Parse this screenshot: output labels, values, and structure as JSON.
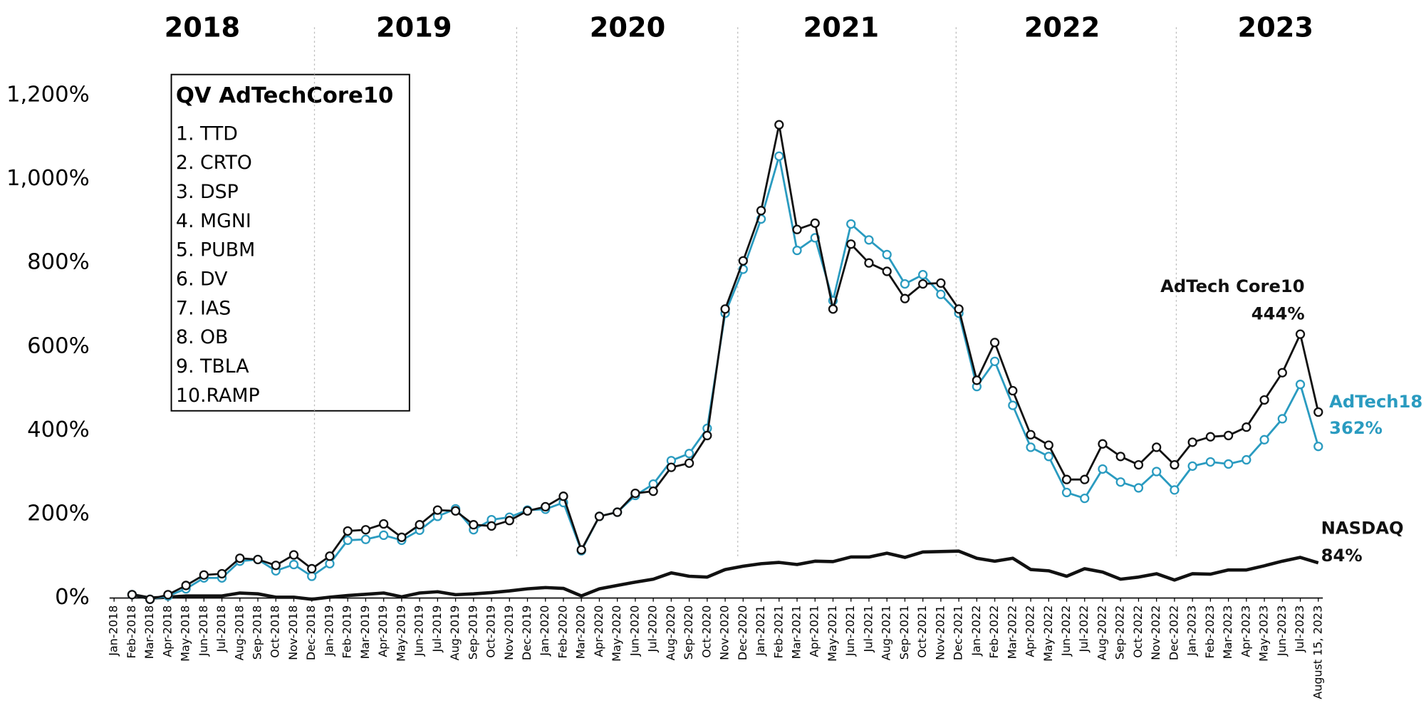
{
  "chart_data": {
    "type": "line",
    "years": [
      "2018",
      "2019",
      "2020",
      "2021",
      "2022",
      "2023"
    ],
    "index_box": {
      "title": "QV AdTechCore10",
      "items": [
        "1. TTD",
        "2. CRTO",
        "3. DSP",
        "4. MGNI",
        "5. PUBM",
        "6. DV",
        "7. IAS",
        "8. OB",
        "9. TBLA",
        "10.RAMP"
      ]
    },
    "categories": [
      "Jan-2018",
      "Feb-2018",
      "Mar-2018",
      "Apr-2018",
      "May-2018",
      "Jun-2018",
      "Jul-2018",
      "Aug-2018",
      "Sep-2018",
      "Oct-2018",
      "Nov-2018",
      "Dec-2018",
      "Jan-2019",
      "Feb-2019",
      "Mar-2019",
      "Apr-2019",
      "May-2019",
      "Jun-2019",
      "Jul-2019",
      "Aug-2019",
      "Sep-2019",
      "Oct-2019",
      "Nov-2019",
      "Dec-2019",
      "Jan-2020",
      "Feb-2020",
      "Mar-2020",
      "Apr-2020",
      "May-2020",
      "Jun-2020",
      "Jul-2020",
      "Aug-2020",
      "Sep-2020",
      "Oct-2020",
      "Nov-2020",
      "Dec-2020",
      "Jan-2021",
      "Feb-2021",
      "Mar-2021",
      "Apr-2021",
      "May-2021",
      "Jun-2021",
      "Jul-2021",
      "Aug-2021",
      "Sep-2021",
      "Oct-2021",
      "Nov-2021",
      "Dec-2021",
      "Jan-2022",
      "Feb-2022",
      "Mar-2022",
      "Apr-2022",
      "May-2022",
      "Jun-2022",
      "Jul-2022",
      "Aug-2022",
      "Sep-2022",
      "Oct-2022",
      "Nov-2022",
      "Dec-2022",
      "Jan-2023",
      "Feb-2023",
      "Mar-2023",
      "Apr-2023",
      "May-2023",
      "Jun-2023",
      "Jul-2023",
      "August 15, 2023"
    ],
    "series": [
      {
        "name": "AdTech Core10",
        "color": "#111111",
        "markers": true,
        "values": [
          null,
          8,
          -3,
          8,
          30,
          55,
          58,
          95,
          92,
          78,
          103,
          70,
          100,
          160,
          163,
          177,
          145,
          175,
          210,
          208,
          175,
          172,
          185,
          208,
          218,
          243,
          115,
          195,
          205,
          250,
          255,
          312,
          322,
          388,
          690,
          805,
          925,
          1130,
          880,
          895,
          690,
          845,
          800,
          780,
          715,
          750,
          752,
          690,
          520,
          610,
          495,
          390,
          365,
          283,
          283,
          368,
          338,
          318,
          360,
          318,
          372,
          385,
          388,
          408,
          473,
          538,
          630,
          444
        ],
        "value_labels": [
          null,
          null,
          null,
          null,
          null,
          null,
          null,
          null,
          null,
          null,
          null,
          null,
          null,
          null,
          null,
          null,
          null,
          null,
          null,
          null,
          null,
          null,
          null,
          null,
          null,
          null,
          null,
          null,
          null,
          null,
          null,
          null,
          null,
          null,
          null,
          null,
          null,
          null,
          null,
          null,
          null,
          null,
          null,
          null,
          null,
          null,
          null,
          null,
          null,
          null,
          null,
          null,
          null,
          null,
          null,
          null,
          null,
          null,
          null,
          null,
          null,
          null,
          null,
          null,
          null,
          null,
          null,
          "444%"
        ]
      },
      {
        "name": "AdTech18",
        "color": "#2a9bc0",
        "markers": true,
        "values": [
          null,
          8,
          -3,
          5,
          22,
          48,
          48,
          88,
          92,
          65,
          80,
          52,
          82,
          138,
          140,
          150,
          138,
          162,
          195,
          213,
          163,
          187,
          193,
          210,
          212,
          228,
          113,
          195,
          205,
          245,
          272,
          328,
          345,
          405,
          680,
          785,
          905,
          1055,
          830,
          860,
          710,
          893,
          855,
          820,
          750,
          772,
          725,
          680,
          505,
          565,
          460,
          360,
          338,
          252,
          238,
          308,
          277,
          263,
          302,
          258,
          315,
          325,
          320,
          330,
          378,
          428,
          510,
          362
        ],
        "value_labels": [
          null,
          null,
          null,
          null,
          null,
          null,
          null,
          null,
          null,
          null,
          null,
          null,
          null,
          null,
          null,
          null,
          null,
          null,
          null,
          null,
          null,
          null,
          null,
          null,
          null,
          null,
          null,
          null,
          null,
          null,
          null,
          null,
          null,
          null,
          null,
          null,
          null,
          null,
          null,
          null,
          null,
          null,
          null,
          null,
          null,
          null,
          null,
          null,
          null,
          null,
          null,
          null,
          null,
          null,
          null,
          null,
          null,
          null,
          null,
          null,
          null,
          null,
          null,
          null,
          null,
          null,
          null,
          "362%"
        ]
      },
      {
        "name": "NASDAQ",
        "color": "#111111",
        "markers": false,
        "values": [
          null,
          8,
          0,
          2,
          5,
          5,
          5,
          12,
          10,
          2,
          2,
          -3,
          2,
          6,
          9,
          12,
          3,
          12,
          15,
          8,
          10,
          13,
          17,
          22,
          25,
          23,
          5,
          22,
          30,
          38,
          45,
          60,
          52,
          50,
          68,
          76,
          82,
          85,
          80,
          88,
          87,
          98,
          98,
          107,
          97,
          110,
          111,
          112,
          95,
          88,
          95,
          68,
          65,
          52,
          70,
          62,
          45,
          50,
          58,
          43,
          58,
          57,
          67,
          67,
          77,
          88,
          97,
          84
        ],
        "value_labels": [
          null,
          null,
          null,
          null,
          null,
          null,
          null,
          null,
          null,
          null,
          null,
          null,
          null,
          null,
          null,
          null,
          null,
          null,
          null,
          null,
          null,
          null,
          null,
          null,
          null,
          null,
          null,
          null,
          null,
          null,
          null,
          null,
          null,
          null,
          null,
          null,
          null,
          null,
          null,
          null,
          null,
          null,
          null,
          null,
          null,
          null,
          null,
          null,
          null,
          null,
          null,
          null,
          null,
          null,
          null,
          null,
          null,
          null,
          null,
          null,
          null,
          null,
          null,
          null,
          null,
          null,
          null,
          "84%"
        ]
      }
    ],
    "ylim": [
      0,
      1200
    ],
    "yticks": [
      {
        "value": 0,
        "label": "0%"
      },
      {
        "value": 200,
        "label": "200%"
      },
      {
        "value": 400,
        "label": "400%"
      },
      {
        "value": 600,
        "label": "600%"
      },
      {
        "value": 800,
        "label": "800%"
      },
      {
        "value": 1000,
        "label": "1,000%"
      },
      {
        "value": 1200,
        "label": "1,200%"
      }
    ],
    "grid": false
  }
}
